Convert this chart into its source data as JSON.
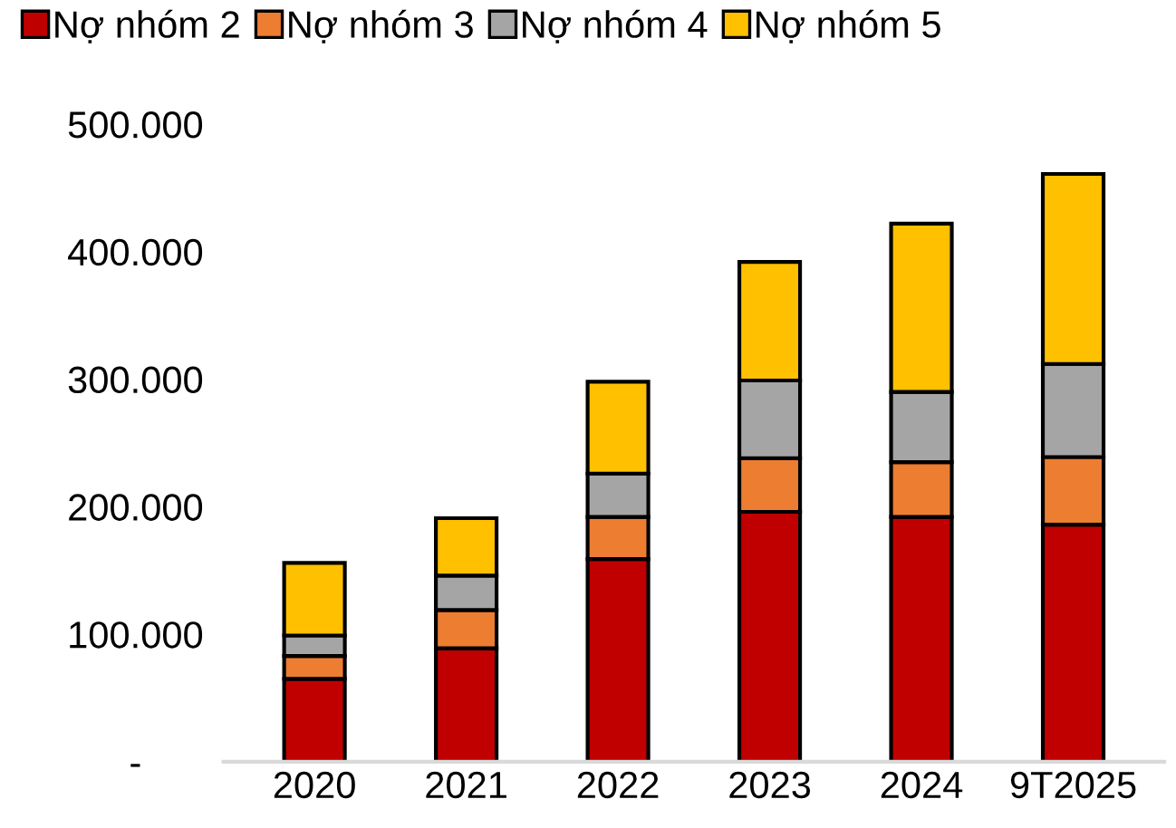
{
  "chart_data": {
    "type": "bar",
    "stacked": true,
    "categories": [
      "2020",
      "2021",
      "2022",
      "2023",
      "2024",
      "9T2025"
    ],
    "series": [
      {
        "name": "Nợ nhóm 2",
        "color": "#c00000",
        "values": [
          65000,
          89000,
          159000,
          196000,
          192000,
          186000
        ]
      },
      {
        "name": "Nợ nhóm 3",
        "color": "#ed7d31",
        "values": [
          18000,
          30000,
          33000,
          42000,
          43000,
          53000
        ]
      },
      {
        "name": "Nợ nhóm 4",
        "color": "#a5a5a5",
        "values": [
          16000,
          27000,
          34000,
          61000,
          55000,
          73000
        ]
      },
      {
        "name": "Nợ nhóm 5",
        "color": "#ffc000",
        "values": [
          57000,
          45000,
          72000,
          93000,
          132000,
          149000
        ]
      }
    ],
    "ylim": [
      0,
      500000
    ],
    "yticks": [
      {
        "value": 0,
        "label": "-"
      },
      {
        "value": 100000,
        "label": "100.000"
      },
      {
        "value": 200000,
        "label": "200.000"
      },
      {
        "value": 300000,
        "label": "300.000"
      },
      {
        "value": 400000,
        "label": "400.000"
      },
      {
        "value": 500000,
        "label": "500.000"
      }
    ],
    "grid": false,
    "legend": "top"
  }
}
